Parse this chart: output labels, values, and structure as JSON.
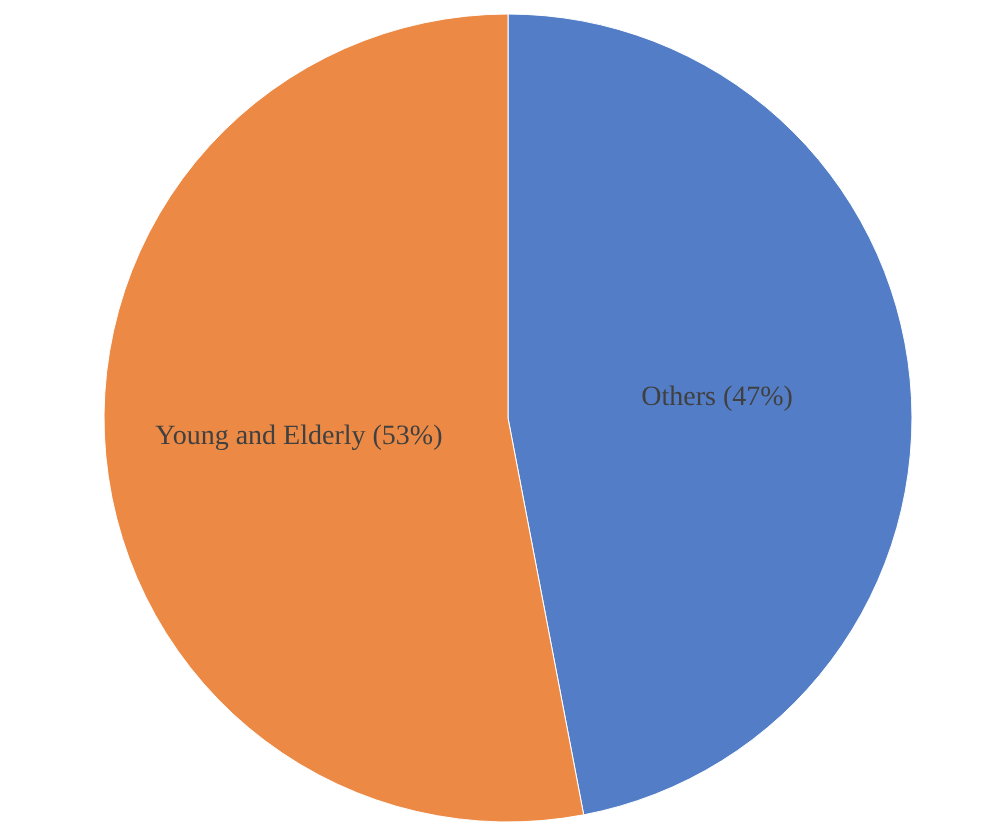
{
  "chart_data": {
    "type": "pie",
    "categories": [
      "Others",
      "Young and Elderly"
    ],
    "values": [
      47,
      53
    ],
    "colors": [
      "#537ec7",
      "#ec8a45"
    ],
    "value_labels": [
      "(47%)",
      "(53%)"
    ]
  }
}
